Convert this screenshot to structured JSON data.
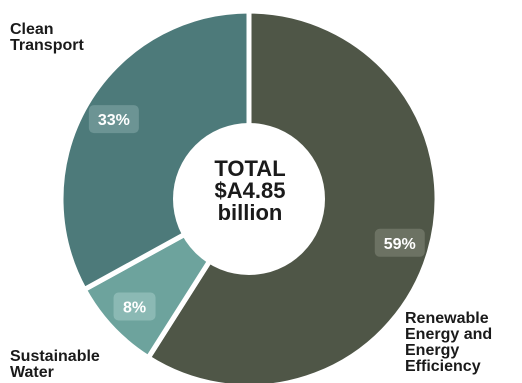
{
  "chart_data": {
    "type": "pie",
    "style": "donut",
    "center_text": [
      "TOTAL",
      "$A4.85",
      "billion"
    ],
    "slices": [
      {
        "label": "Renewable Energy and Energy Efficiency",
        "value": 59,
        "value_label": "59%",
        "color": "#4f5647",
        "badge_color": "#6c7263"
      },
      {
        "label": "Sustainable Water",
        "value": 8,
        "value_label": "8%",
        "color": "#6da39d",
        "badge_color": "#8bb9b4"
      },
      {
        "label": "Clean Transport",
        "value": 33,
        "value_label": "33%",
        "color": "#4d7a7a",
        "badge_color": "#6c9494"
      }
    ],
    "labels": {
      "transport": "Clean\nTransport",
      "water": "Sustainable\nWater",
      "renewable": "Renewable\nEnergy and\nEnergy\nEfficiency"
    },
    "legend": "none"
  }
}
